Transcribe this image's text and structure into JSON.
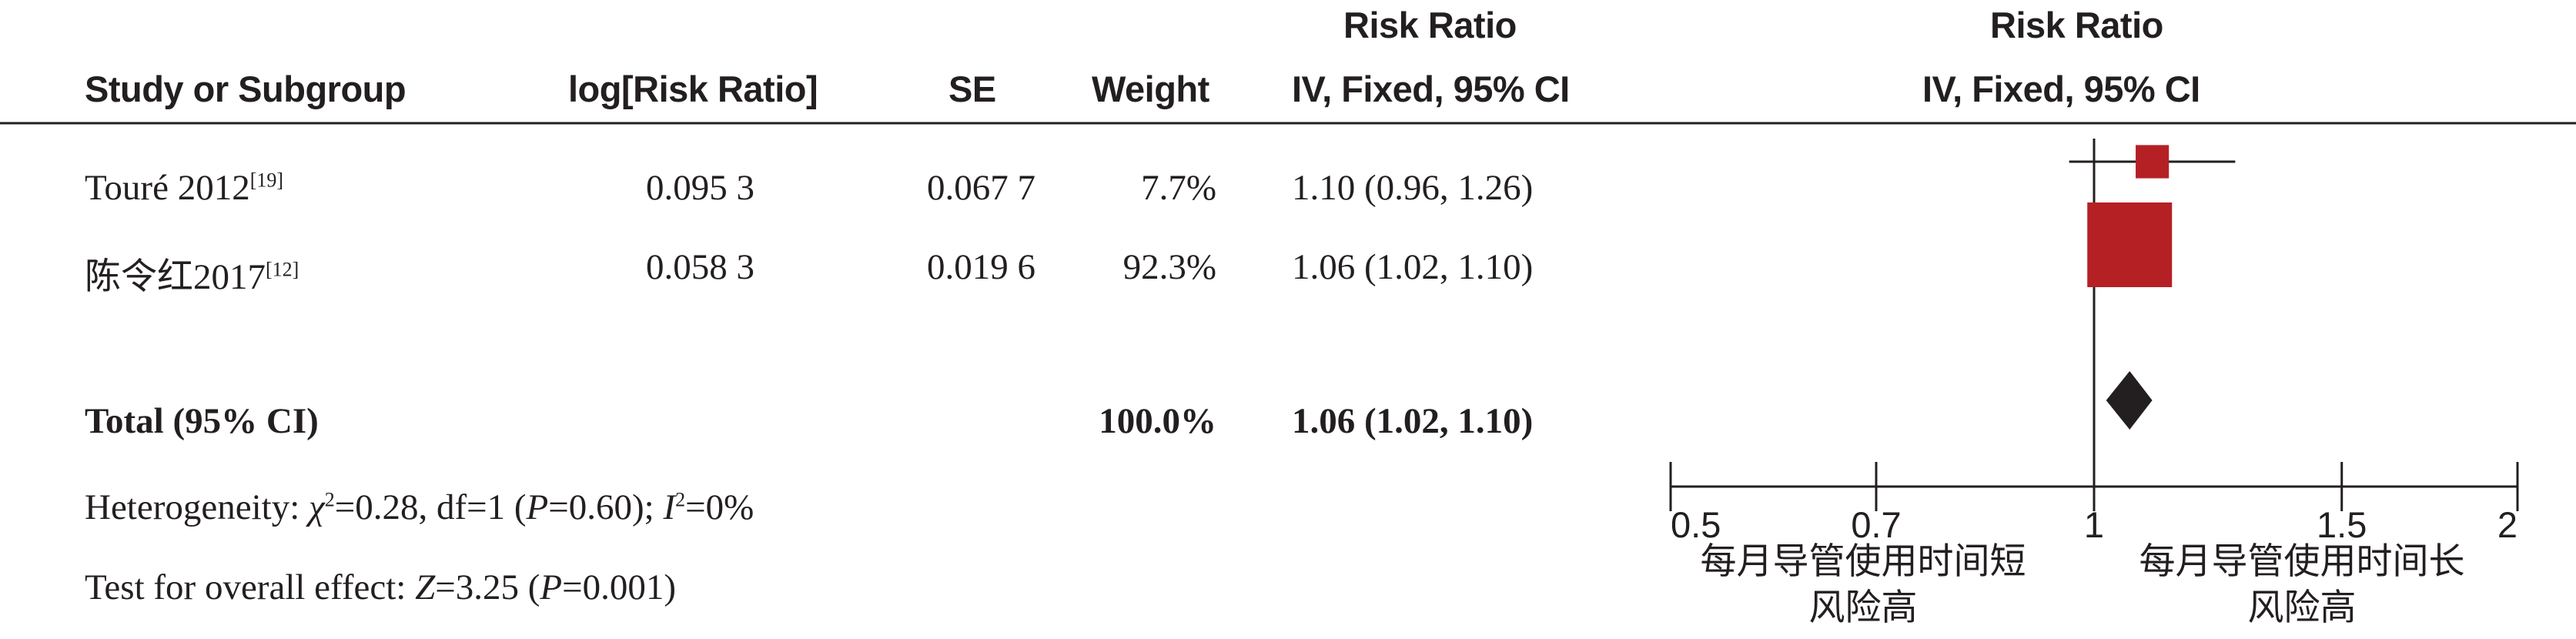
{
  "header": {
    "study_or_subgroup": "Study or Subgroup",
    "log_risk_ratio": "log[Risk Ratio]",
    "se": "SE",
    "weight": "Weight",
    "rr_title": "Risk Ratio",
    "rr_method": "IV, Fixed, 95% CI",
    "plot_title": "Risk Ratio",
    "plot_method": "IV, Fixed, 95% CI"
  },
  "studies": [
    {
      "name": "Touré 2012",
      "ref": "[19]",
      "log_rr": "0.095 3",
      "se": "0.067 7",
      "weight": "7.7%",
      "ci_text": "1.10 (0.96, 1.26)"
    },
    {
      "name": "陈令红2017",
      "ref": "[12]",
      "log_rr": "0.058 3",
      "se": "0.019 6",
      "weight": "92.3%",
      "ci_text": "1.06 (1.02, 1.10)"
    }
  ],
  "total": {
    "label": "Total (95% CI)",
    "weight": "100.0%",
    "ci_text": "1.06 (1.02, 1.10)"
  },
  "heterogeneity": {
    "prefix": "Heterogeneity: ",
    "chi_symbol": "χ",
    "chi_sup": "2",
    "chi_value": "=0.28, df=1 (",
    "p_symbol": "P",
    "p_value": "=0.60); ",
    "i_symbol": "I",
    "i_sup": "2",
    "i_value": "=0%"
  },
  "overall_effect": {
    "prefix": "Test for overall effect: ",
    "z_symbol": "Z",
    "z_value": "=3.25 (",
    "p_symbol": "P",
    "p_value": "=0.001)"
  },
  "axis": {
    "left_caption_line1": "每月导管使用时间短",
    "left_caption_line2": "风险高",
    "right_caption_line1": "每月导管使用时间长",
    "right_caption_line2": "风险高"
  },
  "colors": {
    "text": "#231f20",
    "square": "#b52025",
    "diamond": "#231f20"
  },
  "chart_data": {
    "type": "forest",
    "scale": "log",
    "xlim": [
      0.5,
      2
    ],
    "xticks": [
      0.5,
      0.7,
      1,
      1.5,
      2
    ],
    "xtick_labels": [
      "0.5",
      "0.7",
      "1",
      "1.5",
      "2"
    ],
    "null_line": 1,
    "studies": [
      {
        "name": "Touré 2012",
        "rr": 1.1,
        "lower": 0.96,
        "upper": 1.26,
        "weight": 7.7
      },
      {
        "name": "陈令红2017",
        "rr": 1.06,
        "lower": 1.02,
        "upper": 1.1,
        "weight": 92.3
      }
    ],
    "pooled": {
      "name": "Total (95% CI)",
      "rr": 1.06,
      "lower": 1.02,
      "upper": 1.1
    }
  }
}
